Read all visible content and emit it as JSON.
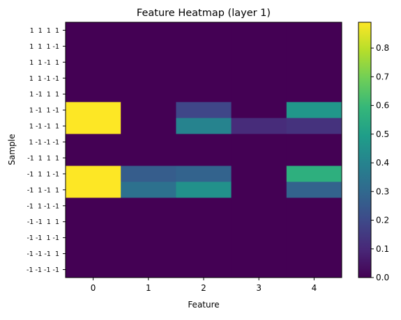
{
  "chart_data": {
    "type": "heatmap",
    "title": "Feature Heatmap (layer 1)",
    "xlabel": "Feature",
    "ylabel": "Sample",
    "x_categories": [
      "0",
      "1",
      "2",
      "3",
      "4"
    ],
    "y_categories": [
      "1  1  1  1",
      "1  1  1 -1",
      "1  1 -1  1",
      "1  1 -1 -1",
      "1 -1  1  1",
      "1 -1  1 -1",
      "1 -1 -1  1",
      "1 -1 -1 -1",
      "-1  1  1  1",
      "-1  1  1 -1",
      "-1  1 -1  1",
      "-1  1 -1 -1",
      "-1 -1  1  1",
      "-1 -1  1 -1",
      "-1 -1 -1  1",
      "-1 -1 -1 -1"
    ],
    "highlighted_rows": [
      5,
      6,
      9,
      10
    ],
    "highlight_color": "#ff0000",
    "values": [
      [
        0,
        0,
        0,
        0,
        0
      ],
      [
        0,
        0,
        0,
        0,
        0
      ],
      [
        0,
        0,
        0,
        0,
        0
      ],
      [
        0,
        0,
        0,
        0,
        0
      ],
      [
        0,
        0,
        0,
        0,
        0
      ],
      [
        0.89,
        0,
        0.19,
        0,
        0.47
      ],
      [
        0.89,
        0,
        0.4,
        0.11,
        0.13
      ],
      [
        0,
        0,
        0,
        0,
        0
      ],
      [
        0,
        0,
        0,
        0,
        0
      ],
      [
        0.89,
        0.26,
        0.28,
        0,
        0.56
      ],
      [
        0.89,
        0.33,
        0.45,
        0,
        0.28
      ],
      [
        0,
        0,
        0,
        0,
        0
      ],
      [
        0,
        0,
        0,
        0,
        0
      ],
      [
        0,
        0,
        0,
        0,
        0
      ],
      [
        0,
        0,
        0,
        0,
        0
      ],
      [
        0,
        0,
        0,
        0,
        0
      ]
    ],
    "colormap": "viridis",
    "vmin": 0,
    "vmax": 0.89,
    "colorbar_ticks": [
      "0.0",
      "0.1",
      "0.2",
      "0.3",
      "0.4",
      "0.5",
      "0.6",
      "0.7",
      "0.8"
    ],
    "grid": false,
    "legend": "colorbar-right"
  }
}
